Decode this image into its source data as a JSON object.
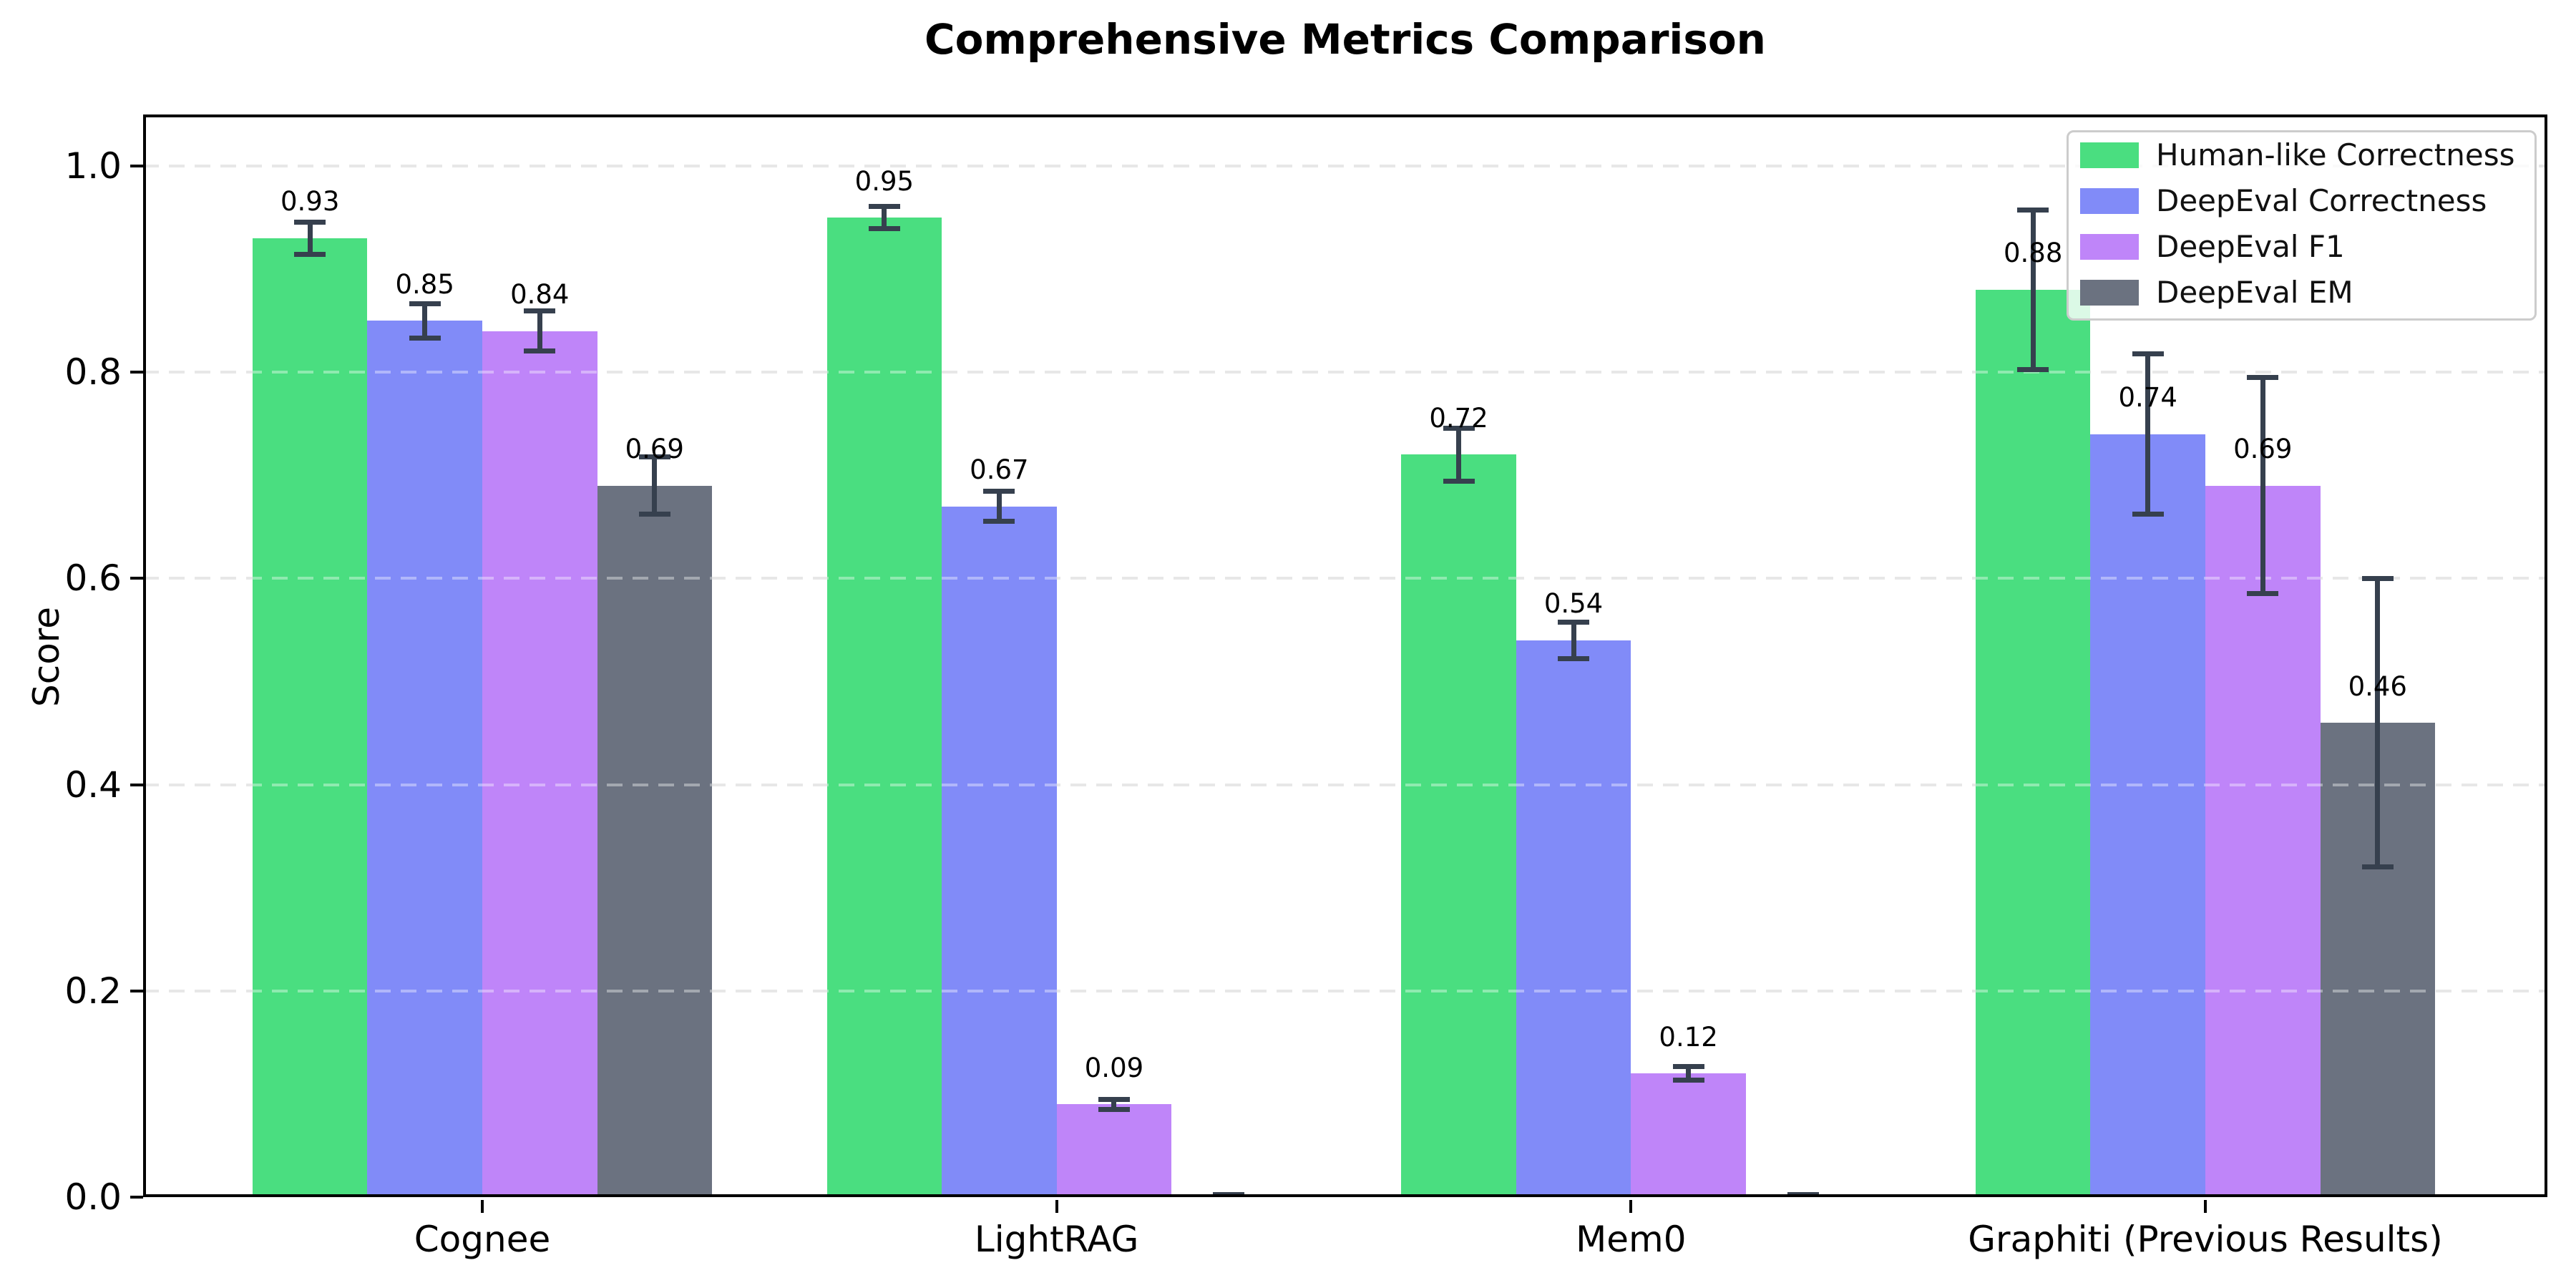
{
  "title": "Comprehensive Metrics Comparison",
  "chart_data": {
    "type": "bar",
    "title": "Comprehensive Metrics Comparison",
    "xlabel": "",
    "ylabel": "Score",
    "ylim": [
      0,
      1.05
    ],
    "yticks": [
      "0.0",
      "0.2",
      "0.4",
      "0.6",
      "0.8",
      "1.0"
    ],
    "grid": "horizontal dashed",
    "legend_position": "upper right",
    "categories": [
      "Cognee",
      "LightRAG",
      "Mem0",
      "Graphiti (Previous Results)"
    ],
    "series": [
      {
        "name": "Human-like Correctness",
        "color": "#4ade80",
        "values": [
          0.93,
          0.95,
          0.72,
          0.88
        ],
        "errors": [
          0.016,
          0.011,
          0.026,
          0.078
        ],
        "bar_labels": [
          "0.93",
          "0.95",
          "0.72",
          "0.88"
        ]
      },
      {
        "name": "DeepEval Correctness",
        "color": "#818bf8",
        "values": [
          0.85,
          0.67,
          0.54,
          0.74
        ],
        "errors": [
          0.017,
          0.015,
          0.018,
          0.078
        ],
        "bar_labels": [
          "0.85",
          "0.67",
          "0.54",
          "0.74"
        ]
      },
      {
        "name": "DeepEval F1",
        "color": "#bf85f9",
        "values": [
          0.84,
          0.09,
          0.12,
          0.69
        ],
        "errors": [
          0.02,
          0.005,
          0.007,
          0.105
        ],
        "bar_labels": [
          "0.84",
          "0.09",
          "0.12",
          "0.69"
        ]
      },
      {
        "name": "DeepEval EM",
        "color": "#6b7280",
        "values": [
          0.69,
          0.0,
          0.0,
          0.46
        ],
        "errors": [
          0.028,
          0.003,
          0.003,
          0.14
        ],
        "bar_labels": [
          "0.69",
          "",
          "",
          "0.46"
        ]
      }
    ],
    "error_bar_color": "#36404e",
    "grid_color": "#d8d8d8",
    "axis_color": "#000000",
    "background_color": "#ffffff"
  }
}
